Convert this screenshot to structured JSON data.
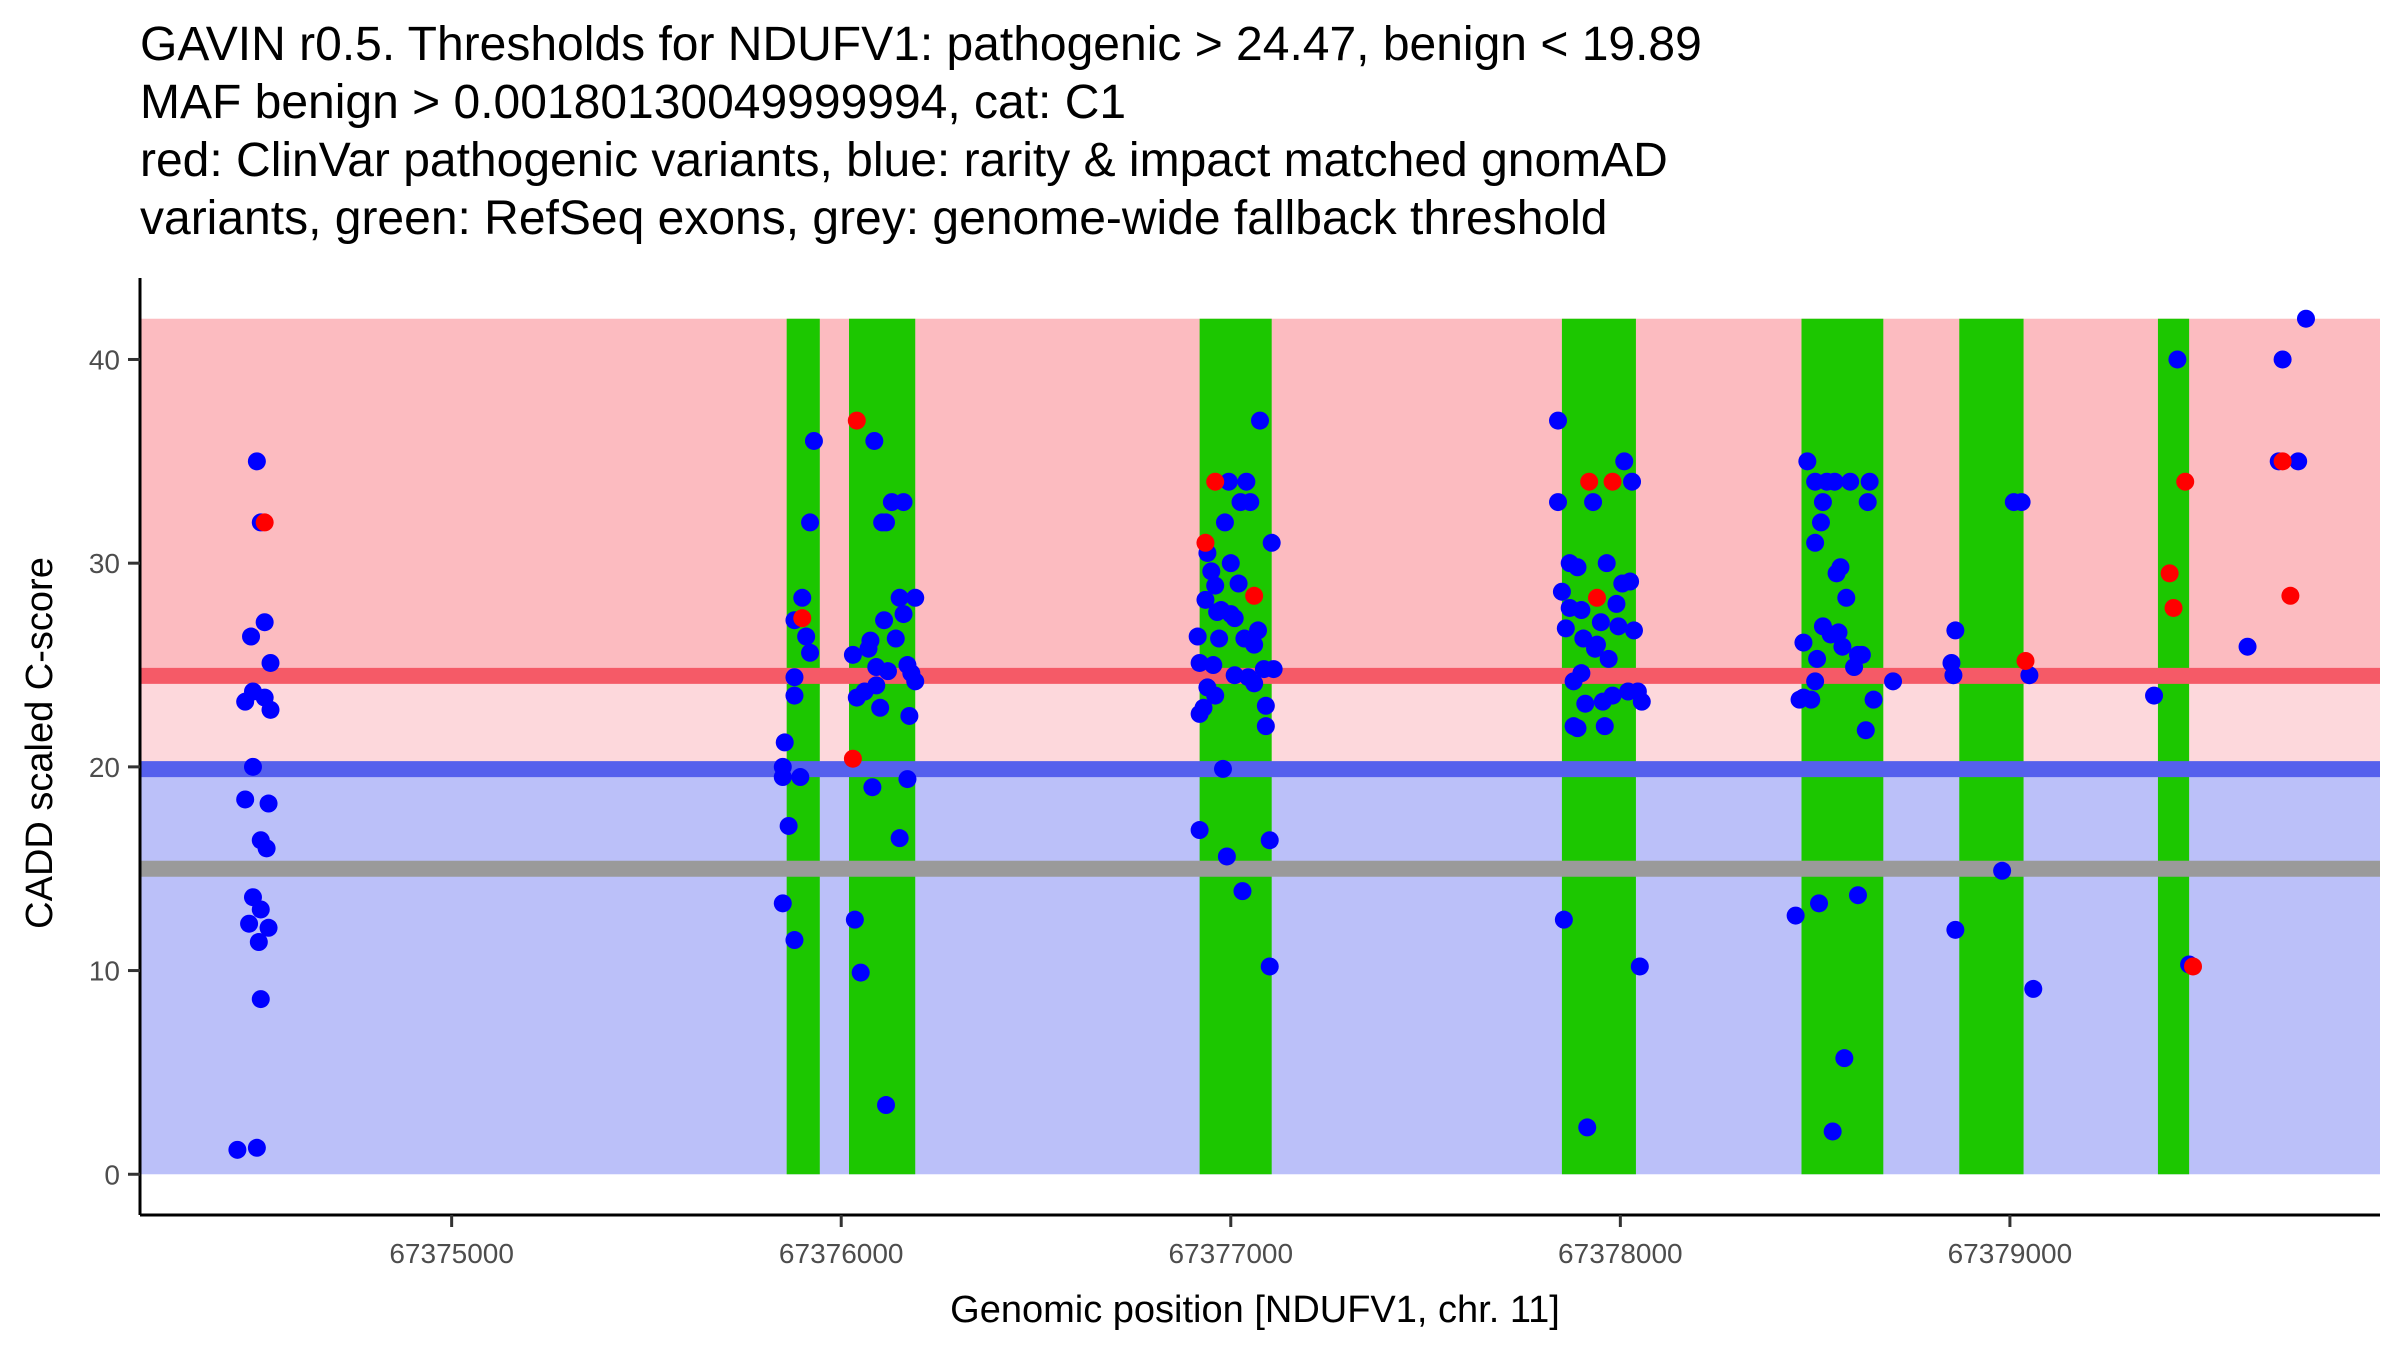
{
  "chart_data": {
    "type": "scatter",
    "title_lines": [
      "GAVIN r0.5. Thresholds for NDUFV1: pathogenic > 24.47, benign < 19.89",
      "MAF benign > 0.00180130049999994, cat: C1",
      "red: ClinVar pathogenic variants, blue: rarity & impact matched gnomAD",
      "variants, green: RefSeq exons, grey: genome-wide fallback threshold"
    ],
    "xlabel": "Genomic position [NDUFV1, chr. 11]",
    "ylabel": "CADD scaled C-score",
    "xlim": [
      67374200,
      67379950
    ],
    "ylim": [
      -2,
      44
    ],
    "x_ticks": [
      67375000,
      67376000,
      67377000,
      67378000,
      67379000
    ],
    "y_ticks": [
      0,
      10,
      20,
      30,
      40
    ],
    "thresholds": {
      "pathogenic": 24.47,
      "benign": 19.89,
      "fallback": 15.0
    },
    "regions": {
      "pathogenic_band": [
        24.47,
        42
      ],
      "uncertain_band": [
        19.89,
        24.47
      ],
      "benign_band": [
        0,
        19.89
      ]
    },
    "exons": [
      [
        67375860,
        67375945
      ],
      [
        67376020,
        67376190
      ],
      [
        67376920,
        67377105
      ],
      [
        67377850,
        67378040
      ],
      [
        67378465,
        67378675
      ],
      [
        67378870,
        67379035
      ],
      [
        67379380,
        67379460
      ]
    ],
    "colors": {
      "pathogenic_band": "#fcbbc0",
      "uncertain_band": "#fdd8dc",
      "benign_band": "#bbc0f9",
      "pathogenic_line": "#f55a67",
      "benign_line": "#5560ed",
      "fallback_line": "#9a9a9a",
      "exon": "#1cc700",
      "benign_point": "#0000ff",
      "pathogenic_point": "#ff0000"
    },
    "series": [
      {
        "name": "gnomAD (benign)",
        "color": "#0000ff",
        "points": [
          [
            67374450,
            1.2
          ],
          [
            67374500,
            1.3
          ],
          [
            67374510,
            8.6
          ],
          [
            67374480,
            12.3
          ],
          [
            67374490,
            13.6
          ],
          [
            67374505,
            11.4
          ],
          [
            67374530,
            12.1
          ],
          [
            67374510,
            13.0
          ],
          [
            67374470,
            18.4
          ],
          [
            67374530,
            18.2
          ],
          [
            67374510,
            16.4
          ],
          [
            67374525,
            16.0
          ],
          [
            67374490,
            20.0
          ],
          [
            67374470,
            23.2
          ],
          [
            67374490,
            23.7
          ],
          [
            67374520,
            23.4
          ],
          [
            67374535,
            22.8
          ],
          [
            67374535,
            25.1
          ],
          [
            67374485,
            26.4
          ],
          [
            67374520,
            27.1
          ],
          [
            67374500,
            35.0
          ],
          [
            67374510,
            32.0
          ],
          [
            67375850,
            13.3
          ],
          [
            67375850,
            19.5
          ],
          [
            67375850,
            20.0
          ],
          [
            67375855,
            21.2
          ],
          [
            67375865,
            17.1
          ],
          [
            67375880,
            11.5
          ],
          [
            67375880,
            23.5
          ],
          [
            67375880,
            24.4
          ],
          [
            67375895,
            19.5
          ],
          [
            67375910,
            26.4
          ],
          [
            67375880,
            27.2
          ],
          [
            67375900,
            28.3
          ],
          [
            67375920,
            25.6
          ],
          [
            67375920,
            32.0
          ],
          [
            67375930,
            36.0
          ],
          [
            67376030,
            25.5
          ],
          [
            67376040,
            23.4
          ],
          [
            67376035,
            12.5
          ],
          [
            67376050,
            9.9
          ],
          [
            67376060,
            23.7
          ],
          [
            67376070,
            25.8
          ],
          [
            67376075,
            26.2
          ],
          [
            67376090,
            24.0
          ],
          [
            67376090,
            24.9
          ],
          [
            67376080,
            19.0
          ],
          [
            67376100,
            22.9
          ],
          [
            67376110,
            27.2
          ],
          [
            67376105,
            32.0
          ],
          [
            67376115,
            32.0
          ],
          [
            67376085,
            36.0
          ],
          [
            67376130,
            33.0
          ],
          [
            67376140,
            26.3
          ],
          [
            67376150,
            28.3
          ],
          [
            67376150,
            16.5
          ],
          [
            67376160,
            27.5
          ],
          [
            67376170,
            25.0
          ],
          [
            67376175,
            22.5
          ],
          [
            67376170,
            19.4
          ],
          [
            67376180,
            24.6
          ],
          [
            67376190,
            24.2
          ],
          [
            67376190,
            28.3
          ],
          [
            67376160,
            33.0
          ],
          [
            67376115,
            3.4
          ],
          [
            67376120,
            24.7
          ],
          [
            67376915,
            26.4
          ],
          [
            67376920,
            22.6
          ],
          [
            67376930,
            22.9
          ],
          [
            67376920,
            25.1
          ],
          [
            67376935,
            28.2
          ],
          [
            67376940,
            30.5
          ],
          [
            67376955,
            25.0
          ],
          [
            67376960,
            23.5
          ],
          [
            67376960,
            28.9
          ],
          [
            67376970,
            26.3
          ],
          [
            67376975,
            27.7
          ],
          [
            67376980,
            19.9
          ],
          [
            67376985,
            32.0
          ],
          [
            67376995,
            34.0
          ],
          [
            67376990,
            15.6
          ],
          [
            67377000,
            30.0
          ],
          [
            67377010,
            24.5
          ],
          [
            67377010,
            27.3
          ],
          [
            67377020,
            29.0
          ],
          [
            67377025,
            33.0
          ],
          [
            67377030,
            13.9
          ],
          [
            67377035,
            26.3
          ],
          [
            67377040,
            34.0
          ],
          [
            67377045,
            24.4
          ],
          [
            67377050,
            33.0
          ],
          [
            67377060,
            26.0
          ],
          [
            67377060,
            24.1
          ],
          [
            67377070,
            26.7
          ],
          [
            67377075,
            37.0
          ],
          [
            67377085,
            24.8
          ],
          [
            67377090,
            23.0
          ],
          [
            67377090,
            22.0
          ],
          [
            67377100,
            16.4
          ],
          [
            67377100,
            10.2
          ],
          [
            67377105,
            31.0
          ],
          [
            67377110,
            24.8
          ],
          [
            67376920,
            16.9
          ],
          [
            67376950,
            29.6
          ],
          [
            67377000,
            27.5
          ],
          [
            67376965,
            27.6
          ],
          [
            67376940,
            23.9
          ],
          [
            67377840,
            37.0
          ],
          [
            67377840,
            33.0
          ],
          [
            67377850,
            28.6
          ],
          [
            67377855,
            12.5
          ],
          [
            67377860,
            26.8
          ],
          [
            67377870,
            27.8
          ],
          [
            67377870,
            30.0
          ],
          [
            67377880,
            22.0
          ],
          [
            67377880,
            24.2
          ],
          [
            67377890,
            29.8
          ],
          [
            67377900,
            27.7
          ],
          [
            67377905,
            26.3
          ],
          [
            67377910,
            23.1
          ],
          [
            67377915,
            2.3
          ],
          [
            67377930,
            33.0
          ],
          [
            67377935,
            25.8
          ],
          [
            67377950,
            27.1
          ],
          [
            67377955,
            23.2
          ],
          [
            67377960,
            22.0
          ],
          [
            67377965,
            30.0
          ],
          [
            67377970,
            25.3
          ],
          [
            67377980,
            23.5
          ],
          [
            67377990,
            28.0
          ],
          [
            67377995,
            26.9
          ],
          [
            67378005,
            29.0
          ],
          [
            67378010,
            35.0
          ],
          [
            67378020,
            23.7
          ],
          [
            67378025,
            29.1
          ],
          [
            67378030,
            34.0
          ],
          [
            67378035,
            26.7
          ],
          [
            67378045,
            23.7
          ],
          [
            67378050,
            10.2
          ],
          [
            67378055,
            23.2
          ],
          [
            67377890,
            21.9
          ],
          [
            67377940,
            26.0
          ],
          [
            67377900,
            24.6
          ],
          [
            67378450,
            12.7
          ],
          [
            67378460,
            23.3
          ],
          [
            67378470,
            26.1
          ],
          [
            67378470,
            23.4
          ],
          [
            67378480,
            35.0
          ],
          [
            67378490,
            23.3
          ],
          [
            67378500,
            34.0
          ],
          [
            67378500,
            31.0
          ],
          [
            67378505,
            25.3
          ],
          [
            67378510,
            13.3
          ],
          [
            67378515,
            32.0
          ],
          [
            67378520,
            26.9
          ],
          [
            67378530,
            34.0
          ],
          [
            67378540,
            26.5
          ],
          [
            67378545,
            2.1
          ],
          [
            67378550,
            34.0
          ],
          [
            67378555,
            29.5
          ],
          [
            67378560,
            26.6
          ],
          [
            67378565,
            29.8
          ],
          [
            67378570,
            25.9
          ],
          [
            67378575,
            5.7
          ],
          [
            67378580,
            28.3
          ],
          [
            67378590,
            34.0
          ],
          [
            67378600,
            24.9
          ],
          [
            67378610,
            13.7
          ],
          [
            67378620,
            25.5
          ],
          [
            67378630,
            21.8
          ],
          [
            67378635,
            33.0
          ],
          [
            67378640,
            34.0
          ],
          [
            67378650,
            23.3
          ],
          [
            67378700,
            24.2
          ],
          [
            67378500,
            24.2
          ],
          [
            67378520,
            33.0
          ],
          [
            67378610,
            25.5
          ],
          [
            67378850,
            25.1
          ],
          [
            67378855,
            24.5
          ],
          [
            67378860,
            26.7
          ],
          [
            67378860,
            12.0
          ],
          [
            67378980,
            14.9
          ],
          [
            67379010,
            33.0
          ],
          [
            67379030,
            33.0
          ],
          [
            67379050,
            24.5
          ],
          [
            67379060,
            9.1
          ],
          [
            67379370,
            23.5
          ],
          [
            67379430,
            40.0
          ],
          [
            67379460,
            10.3
          ],
          [
            67379610,
            25.9
          ],
          [
            67379690,
            35.0
          ],
          [
            67379700,
            40.0
          ],
          [
            67379740,
            35.0
          ],
          [
            67379760,
            42.0
          ]
        ]
      },
      {
        "name": "ClinVar (pathogenic)",
        "color": "#ff0000",
        "points": [
          [
            67374520,
            32.0
          ],
          [
            67375900,
            27.3
          ],
          [
            67376030,
            20.4
          ],
          [
            67376040,
            37.0
          ],
          [
            67376935,
            31.0
          ],
          [
            67376960,
            34.0
          ],
          [
            67377060,
            28.4
          ],
          [
            67377920,
            34.0
          ],
          [
            67377940,
            28.3
          ],
          [
            67377980,
            34.0
          ],
          [
            67379040,
            25.2
          ],
          [
            67379410,
            29.5
          ],
          [
            67379420,
            27.8
          ],
          [
            67379450,
            34.0
          ],
          [
            67379470,
            10.2
          ],
          [
            67379700,
            35.0
          ],
          [
            67379720,
            28.4
          ]
        ]
      }
    ]
  }
}
